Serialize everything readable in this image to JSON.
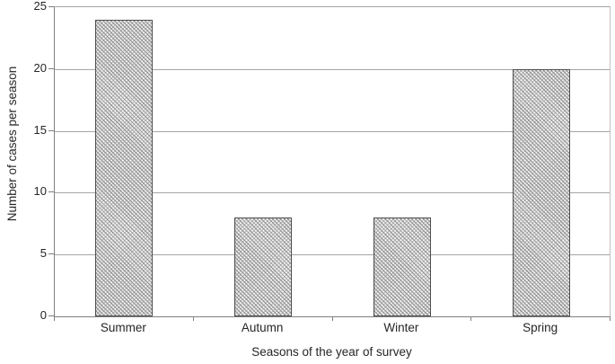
{
  "chart_data": {
    "type": "bar",
    "categories": [
      "Summer",
      "Autumn",
      "Winter",
      "Spring"
    ],
    "values": [
      24,
      8,
      8,
      20
    ],
    "xlabel": "Seasons of the year of survey",
    "ylabel": "Number of cases per season",
    "ylim": [
      0,
      25
    ],
    "yticks": [
      0,
      5,
      10,
      15,
      20,
      25
    ],
    "grid": true,
    "legend": "none",
    "bar_pattern": "diagonal-crosshatch"
  },
  "colors": {
    "background": "#ffffff",
    "text": "#262626",
    "axis": "#808080",
    "grid": "#a6a6a6",
    "grid_light": "#c0c0c0",
    "bar_border": "#4d4d4d",
    "bar_bg": "#efefef",
    "bar_hatch": "#909090",
    "bar_hatch2": "#b8b8b8"
  }
}
